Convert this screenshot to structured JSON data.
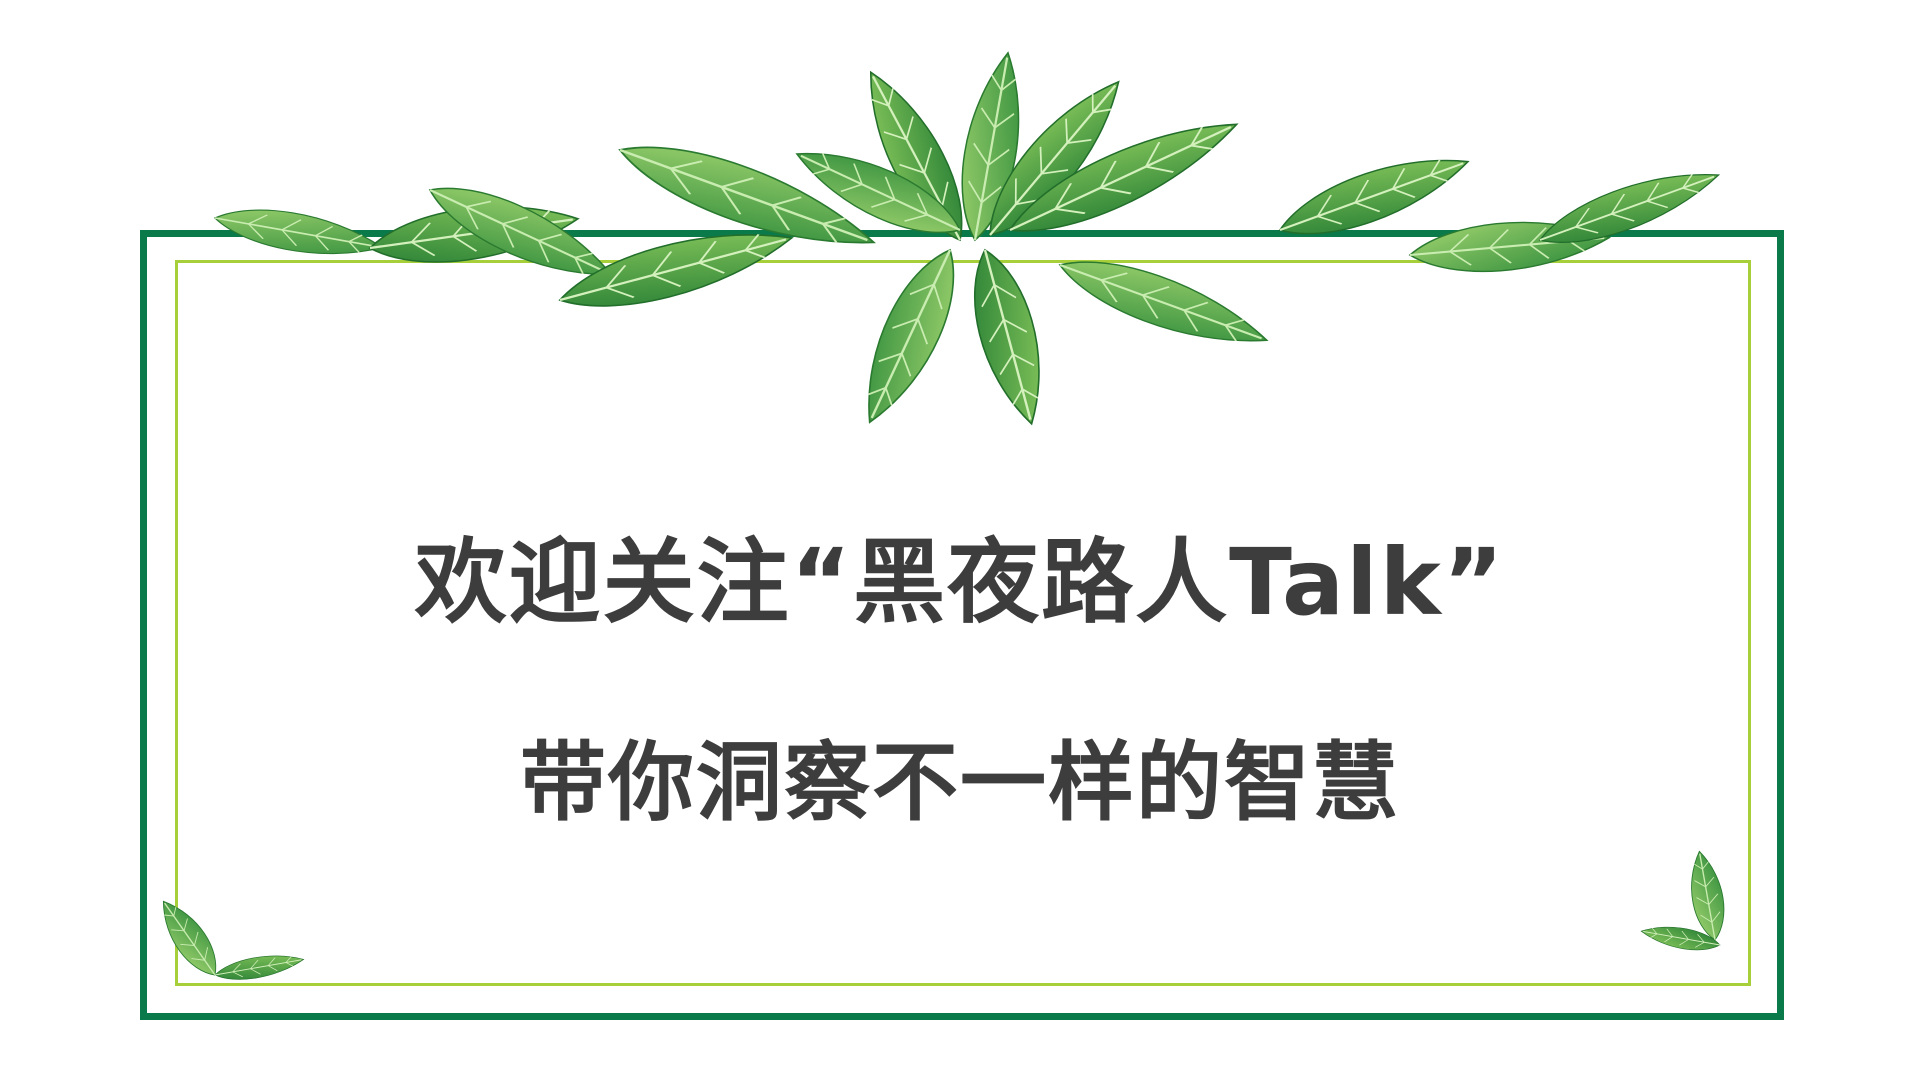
{
  "headline": "欢迎关注“黑夜路人Talk”",
  "subheadline": "带你洞察不一样的智慧",
  "colors": {
    "frame_outer": "#0a7a4b",
    "frame_inner": "#a7cf3a",
    "leaf_dark": "#2f8f3a",
    "leaf_mid": "#4fa83f",
    "leaf_light": "#8cc86a",
    "text": "#3d3d3d"
  }
}
